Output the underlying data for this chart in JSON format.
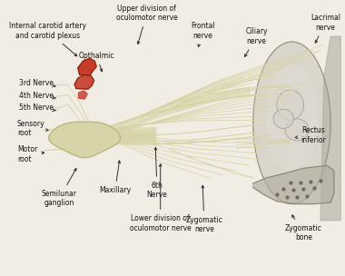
{
  "bg_color": "#f2ede4",
  "nerve_color": "#d8d4a8",
  "nerve_dark": "#b8b488",
  "red_color": "#c43c2a",
  "red_dark": "#8b2010",
  "gray_orbit": "#b0aca0",
  "gray_light": "#d4d0c8",
  "gray_bone": "#a8a498",
  "dark_line": "#4a4838",
  "arrow_color": "#222222",
  "annotations": [
    {
      "text": "Upper division of\noculomotor nerve",
      "tpos": [
        0.415,
        0.955
      ],
      "aend": [
        0.385,
        0.83
      ],
      "ha": "center"
    },
    {
      "text": "Lacrimal\nnerve",
      "tpos": [
        0.945,
        0.92
      ],
      "aend": [
        0.91,
        0.835
      ],
      "ha": "center"
    },
    {
      "text": "Ciliary\nnerve",
      "tpos": [
        0.74,
        0.87
      ],
      "aend": [
        0.7,
        0.785
      ],
      "ha": "center"
    },
    {
      "text": "Frontal\nnerve",
      "tpos": [
        0.58,
        0.89
      ],
      "aend": [
        0.565,
        0.82
      ],
      "ha": "center"
    },
    {
      "text": "Internal carotid artery\nand carotid plexus",
      "tpos": [
        0.12,
        0.89
      ],
      "aend": [
        0.215,
        0.79
      ],
      "ha": "center"
    },
    {
      "text": "Opthalmic",
      "tpos": [
        0.265,
        0.8
      ],
      "aend": [
        0.285,
        0.73
      ],
      "ha": "center"
    },
    {
      "text": "3rd Nerve",
      "tpos": [
        0.035,
        0.7
      ],
      "aend": [
        0.145,
        0.688
      ],
      "ha": "left"
    },
    {
      "text": "4th Nerve",
      "tpos": [
        0.035,
        0.655
      ],
      "aend": [
        0.145,
        0.645
      ],
      "ha": "left"
    },
    {
      "text": "5th Nerve",
      "tpos": [
        0.035,
        0.61
      ],
      "aend": [
        0.145,
        0.6
      ],
      "ha": "left"
    },
    {
      "text": "Sensory\nroot",
      "tpos": [
        0.03,
        0.535
      ],
      "aend": [
        0.125,
        0.528
      ],
      "ha": "left"
    },
    {
      "text": "Motor\nroot",
      "tpos": [
        0.03,
        0.44
      ],
      "aend": [
        0.12,
        0.448
      ],
      "ha": "left"
    },
    {
      "text": "Semilunar\nganglion",
      "tpos": [
        0.155,
        0.28
      ],
      "aend": [
        0.21,
        0.4
      ],
      "ha": "center"
    },
    {
      "text": "Maxillary",
      "tpos": [
        0.32,
        0.31
      ],
      "aend": [
        0.335,
        0.43
      ],
      "ha": "center"
    },
    {
      "text": "6th\nNerve",
      "tpos": [
        0.445,
        0.31
      ],
      "aend": [
        0.44,
        0.478
      ],
      "ha": "center"
    },
    {
      "text": "Lower division of\noculomotor nerve",
      "tpos": [
        0.455,
        0.19
      ],
      "aend": [
        0.455,
        0.418
      ],
      "ha": "center"
    },
    {
      "text": "Zygomatic\nnerve",
      "tpos": [
        0.585,
        0.185
      ],
      "aend": [
        0.58,
        0.34
      ],
      "ha": "center"
    },
    {
      "text": "Rectus\ninferior",
      "tpos": [
        0.91,
        0.51
      ],
      "aend": [
        0.845,
        0.5
      ],
      "ha": "center"
    },
    {
      "text": "Zygomatic\nbone",
      "tpos": [
        0.88,
        0.155
      ],
      "aend": [
        0.84,
        0.23
      ],
      "ha": "center"
    }
  ]
}
